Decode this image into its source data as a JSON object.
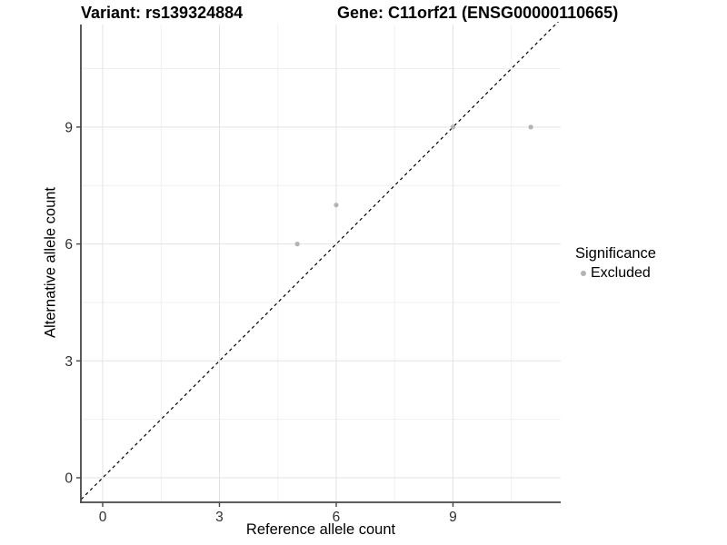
{
  "chart_data": {
    "type": "scatter",
    "title_left": "Variant: rs139324884",
    "title_right": "Gene: C11orf21 (ENSG00000110665)",
    "xlabel": "Reference allele count",
    "ylabel": "Alternative allele count",
    "x_ticks": [
      0,
      3,
      6,
      9
    ],
    "y_ticks": [
      0,
      3,
      6,
      9
    ],
    "x_minor_gridlines": [
      1.5,
      4.5,
      7.5,
      10.5
    ],
    "y_minor_gridlines": [
      1.5,
      4.5,
      7.5,
      10.5
    ],
    "xlim": [
      -0.56,
      11.78
    ],
    "ylim": [
      -0.63,
      11.56
    ],
    "grid": true,
    "series": [
      {
        "name": "Excluded",
        "color": "#b3b3b3",
        "points": [
          {
            "x": 5,
            "y": 6
          },
          {
            "x": 6,
            "y": 7
          },
          {
            "x": 9,
            "y": 9
          },
          {
            "x": 11,
            "y": 9
          }
        ]
      }
    ],
    "reference_line": {
      "type": "identity",
      "slope": 1,
      "intercept": 0,
      "style": "dashed",
      "color": "#000000"
    },
    "legend": {
      "title": "Significance",
      "position": "right",
      "items": [
        {
          "label": "Excluded",
          "color": "#b3b3b3"
        }
      ]
    },
    "colors": {
      "grid_major": "#e3e3e3",
      "grid_minor": "#f0f0f0",
      "axis": "#474747",
      "tick_text": "#303030"
    }
  }
}
